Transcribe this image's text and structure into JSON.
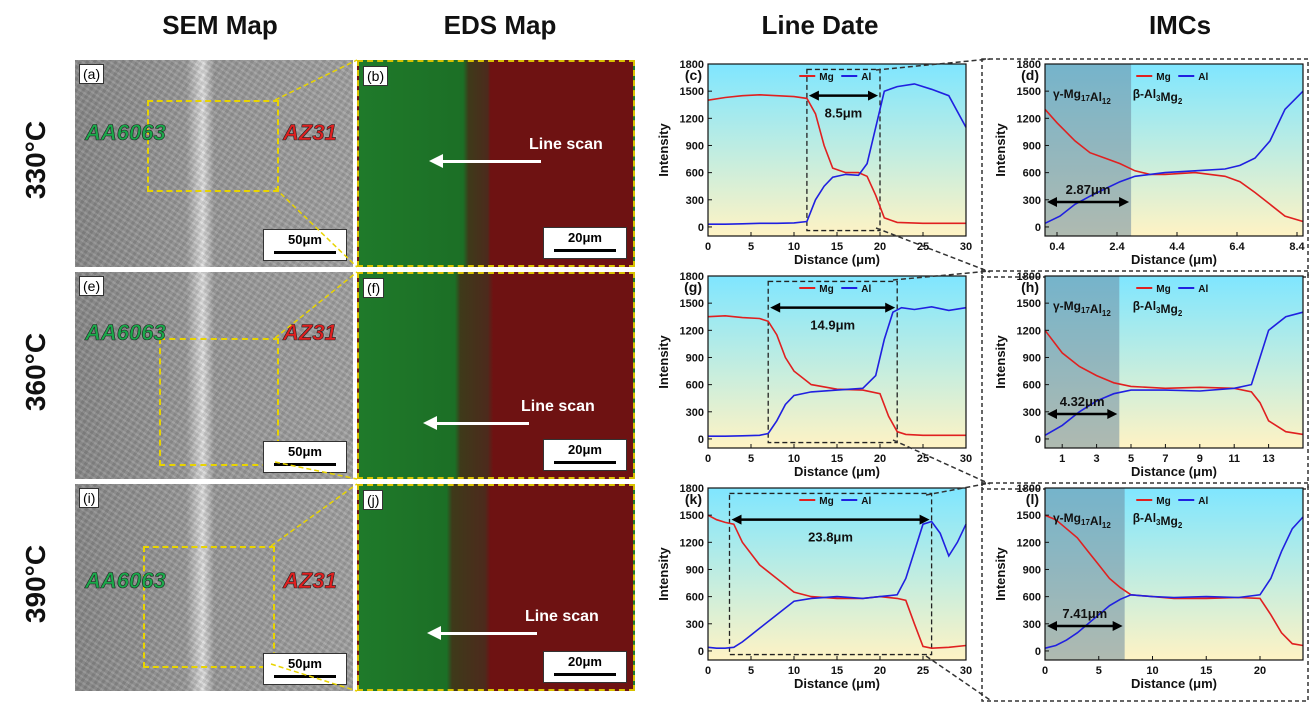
{
  "column_titles": [
    "SEM Map",
    "EDS Map",
    "Line Date",
    "IMCs"
  ],
  "rows": [
    {
      "temperature": "330°C",
      "sem": {
        "label": "(a)",
        "left_material": "AA6063",
        "right_material": "AZ31",
        "scale": "50μm"
      },
      "eds": {
        "label": "(b)",
        "line_scan": "Line scan",
        "scale": "20μm"
      }
    },
    {
      "temperature": "360°C",
      "sem": {
        "label": "(e)",
        "left_material": "AA6063",
        "right_material": "AZ31",
        "scale": "50μm"
      },
      "eds": {
        "label": "(f)",
        "line_scan": "Line scan",
        "scale": "20μm"
      }
    },
    {
      "temperature": "390°C",
      "sem": {
        "label": "(i)",
        "left_material": "AA6063",
        "right_material": "AZ31",
        "scale": "50μm"
      },
      "eds": {
        "label": "(j)",
        "line_scan": "Line scan",
        "scale": "20μm"
      }
    }
  ],
  "colors": {
    "mg": "#e02020",
    "al": "#2020e0",
    "bg_top": "#7fe6ff",
    "bg_bottom": "#fff3c4",
    "imc_band": "#6e8aa0",
    "green_eds": "#1f7a2a",
    "red_eds": "#6e1212"
  },
  "chart_data": [
    {
      "id": "c",
      "type": "line",
      "label": "(c)",
      "xlabel": "Distance (μm)",
      "ylabel": "Intensity",
      "xlim": [
        0,
        30
      ],
      "ylim": [
        -100,
        1800
      ],
      "xticks": [
        0,
        5,
        10,
        15,
        20,
        25,
        30
      ],
      "yticks": [
        0,
        300,
        600,
        900,
        1200,
        1500,
        1800
      ],
      "legend": [
        "Mg",
        "Al"
      ],
      "annotation": "8.5μm",
      "span": [
        11.5,
        20
      ],
      "series": [
        {
          "name": "Mg",
          "x": [
            0,
            2,
            4,
            6,
            8,
            10,
            11.5,
            12.5,
            13.5,
            14.5,
            16,
            17.5,
            18.5,
            19.5,
            20.5,
            22,
            25,
            30
          ],
          "y": [
            1400,
            1430,
            1450,
            1460,
            1450,
            1440,
            1420,
            1250,
            900,
            650,
            600,
            600,
            560,
            350,
            100,
            50,
            40,
            40
          ]
        },
        {
          "name": "Al",
          "x": [
            0,
            2,
            4,
            6,
            8,
            10,
            11.5,
            12.5,
            13.5,
            14.5,
            16,
            17.5,
            18.5,
            19.5,
            20.5,
            22,
            24,
            26,
            28,
            30
          ],
          "y": [
            30,
            30,
            35,
            40,
            40,
            45,
            60,
            300,
            450,
            550,
            580,
            570,
            700,
            1100,
            1500,
            1550,
            1580,
            1520,
            1450,
            1100
          ]
        }
      ]
    },
    {
      "id": "d",
      "type": "line",
      "label": "(d)",
      "xlabel": "Distance (μm)",
      "ylabel": "Intensity",
      "xlim": [
        0,
        8.6
      ],
      "ylim": [
        -100,
        1800
      ],
      "xticks": [
        0.4,
        2.4,
        4.4,
        6.4,
        8.4
      ],
      "yticks": [
        0,
        300,
        600,
        900,
        1200,
        1500,
        1800
      ],
      "legend": [
        "Mg",
        "Al"
      ],
      "phase_left": "γ-Mg17Al12",
      "phase_right": "β-Al3Mg2",
      "annotation": "2.87μm",
      "span": [
        0,
        2.87
      ],
      "series": [
        {
          "name": "Mg",
          "x": [
            0,
            0.4,
            1,
            1.5,
            2,
            2.5,
            3,
            3.5,
            4,
            5,
            6,
            6.5,
            7,
            7.5,
            8,
            8.6
          ],
          "y": [
            1300,
            1150,
            950,
            820,
            760,
            700,
            620,
            580,
            580,
            600,
            560,
            500,
            380,
            250,
            120,
            60
          ]
        },
        {
          "name": "Al",
          "x": [
            0,
            0.5,
            1,
            1.5,
            2,
            2.5,
            3,
            3.5,
            4,
            5,
            6,
            6.5,
            7,
            7.5,
            8,
            8.6
          ],
          "y": [
            40,
            120,
            250,
            340,
            420,
            500,
            560,
            580,
            600,
            620,
            640,
            680,
            760,
            950,
            1300,
            1500
          ]
        }
      ]
    },
    {
      "id": "g",
      "type": "line",
      "label": "(g)",
      "xlabel": "Distance (μm)",
      "ylabel": "Intensity",
      "xlim": [
        0,
        30
      ],
      "ylim": [
        -100,
        1800
      ],
      "xticks": [
        0,
        5,
        10,
        15,
        20,
        25,
        30
      ],
      "yticks": [
        0,
        300,
        600,
        900,
        1200,
        1500,
        1800
      ],
      "legend": [
        "Mg",
        "Al"
      ],
      "annotation": "14.9μm",
      "span": [
        7,
        22
      ],
      "series": [
        {
          "name": "Mg",
          "x": [
            0,
            2,
            4,
            6,
            7,
            8,
            9,
            10,
            12,
            15,
            18,
            20,
            21,
            22,
            23,
            25,
            30
          ],
          "y": [
            1350,
            1360,
            1340,
            1330,
            1300,
            1150,
            900,
            750,
            600,
            550,
            540,
            500,
            250,
            80,
            50,
            40,
            40
          ]
        },
        {
          "name": "Al",
          "x": [
            0,
            2,
            4,
            6,
            7,
            8,
            9,
            10,
            12,
            15,
            18,
            19.5,
            20.5,
            21.5,
            22.5,
            24,
            26,
            28,
            30
          ],
          "y": [
            30,
            30,
            35,
            40,
            60,
            200,
            380,
            480,
            520,
            540,
            560,
            700,
            1100,
            1400,
            1450,
            1430,
            1460,
            1420,
            1450
          ]
        }
      ]
    },
    {
      "id": "h",
      "type": "line",
      "label": "(h)",
      "xlabel": "Distance (μm)",
      "ylabel": "Intensity",
      "xlim": [
        0,
        15
      ],
      "ylim": [
        -100,
        1800
      ],
      "xticks": [
        1,
        3,
        5,
        7,
        9,
        11,
        13
      ],
      "yticks": [
        0,
        300,
        600,
        900,
        1200,
        1500,
        1800
      ],
      "legend": [
        "Mg",
        "Al"
      ],
      "phase_left": "γ-Mg17Al12",
      "phase_right": "β-Al3Mg2",
      "annotation": "4.32μm",
      "span": [
        0,
        4.32
      ],
      "series": [
        {
          "name": "Mg",
          "x": [
            0,
            1,
            2,
            3,
            4,
            5,
            7,
            9,
            11,
            12,
            12.5,
            13,
            14,
            15
          ],
          "y": [
            1200,
            950,
            800,
            700,
            620,
            580,
            560,
            570,
            560,
            520,
            400,
            200,
            80,
            50
          ]
        },
        {
          "name": "Al",
          "x": [
            0,
            1,
            2,
            3,
            4,
            5,
            7,
            9,
            11,
            12,
            12.5,
            13,
            14,
            15
          ],
          "y": [
            40,
            150,
            300,
            420,
            500,
            540,
            540,
            530,
            560,
            600,
            900,
            1200,
            1350,
            1400
          ]
        }
      ]
    },
    {
      "id": "k",
      "type": "line",
      "label": "(k)",
      "xlabel": "Distance (μm)",
      "ylabel": "Intensity",
      "xlim": [
        0,
        30
      ],
      "ylim": [
        -100,
        1800
      ],
      "xticks": [
        0,
        5,
        10,
        15,
        20,
        25,
        30
      ],
      "yticks": [
        0,
        300,
        600,
        900,
        1200,
        1500,
        1800
      ],
      "legend": [
        "Mg",
        "Al"
      ],
      "annotation": "23.8μm",
      "span": [
        2.5,
        26
      ],
      "series": [
        {
          "name": "Mg",
          "x": [
            0,
            1,
            2,
            3,
            4,
            6,
            8,
            10,
            12,
            15,
            18,
            20,
            22,
            23,
            24,
            25,
            26,
            28,
            30
          ],
          "y": [
            1500,
            1450,
            1420,
            1400,
            1200,
            950,
            800,
            650,
            600,
            580,
            580,
            600,
            580,
            560,
            300,
            50,
            30,
            40,
            60
          ]
        },
        {
          "name": "Al",
          "x": [
            0,
            1,
            2,
            3,
            4,
            6,
            8,
            10,
            12,
            15,
            18,
            20,
            22,
            23,
            24,
            25,
            26,
            27,
            28,
            29,
            30
          ],
          "y": [
            40,
            30,
            30,
            40,
            100,
            250,
            400,
            550,
            580,
            600,
            580,
            600,
            620,
            800,
            1100,
            1400,
            1430,
            1300,
            1050,
            1200,
            1400
          ]
        }
      ]
    },
    {
      "id": "l",
      "type": "line",
      "label": "(l)",
      "xlabel": "Distance (μm)",
      "ylabel": "Intensity",
      "xlim": [
        0,
        24
      ],
      "ylim": [
        -100,
        1800
      ],
      "xticks": [
        0,
        5,
        10,
        15,
        20
      ],
      "yticks": [
        0,
        300,
        600,
        900,
        1200,
        1500,
        1800
      ],
      "legend": [
        "Mg",
        "Al"
      ],
      "phase_left": "γ-Mg17Al12",
      "phase_right": "β-Al3Mg2",
      "annotation": "7.41μm",
      "span": [
        0,
        7.41
      ],
      "series": [
        {
          "name": "Mg",
          "x": [
            0,
            1,
            2,
            3,
            4,
            5,
            6,
            7,
            8,
            10,
            12,
            15,
            18,
            20,
            21,
            22,
            23,
            24
          ],
          "y": [
            1500,
            1450,
            1350,
            1250,
            1100,
            950,
            800,
            700,
            620,
            600,
            580,
            580,
            590,
            580,
            400,
            200,
            80,
            60
          ]
        },
        {
          "name": "Al",
          "x": [
            0,
            1,
            2,
            3,
            4,
            5,
            6,
            7,
            8,
            10,
            12,
            15,
            18,
            20,
            21,
            22,
            23,
            24
          ],
          "y": [
            30,
            60,
            120,
            200,
            300,
            400,
            500,
            570,
            620,
            600,
            590,
            600,
            590,
            620,
            800,
            1100,
            1350,
            1480
          ]
        }
      ]
    }
  ]
}
